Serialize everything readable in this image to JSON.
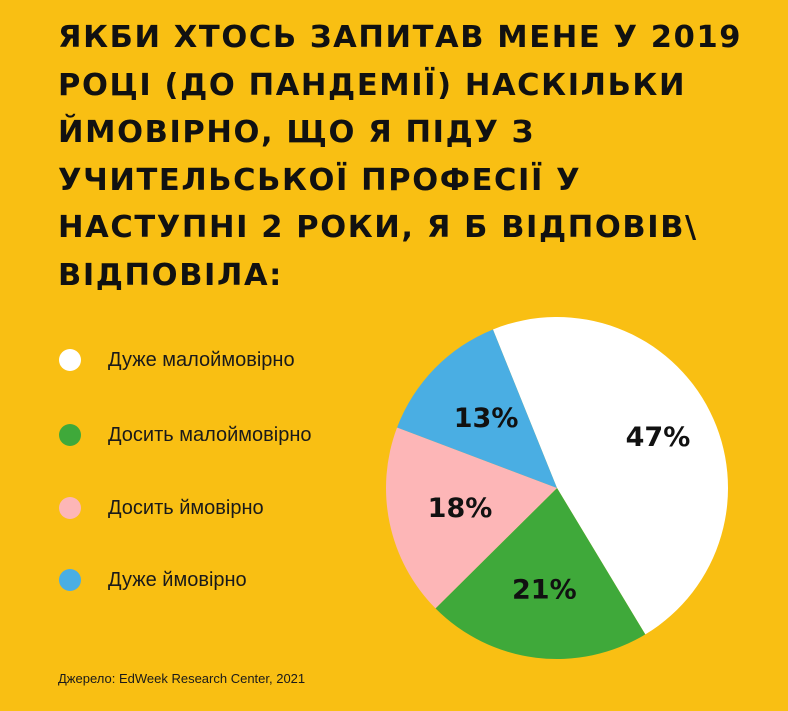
{
  "title_lines": [
    "ЯКБИ ХТОСЬ ЗАПИТАВ МЕНЕ У 2019",
    "РОЦІ (ДО ПАНДЕМІЇ) НАСКІЛЬКИ",
    "ЙМОВІРНО, ЩО Я ПІДУ З",
    "УЧИТЕЛЬСЬКОЇ ПРОФЕСІЇ У",
    "НАСТУПНІ 2 РОКИ, Я Б ВІДПОВІВ\\",
    "ВІДПОВІЛА:"
  ],
  "source": "Джерело: EdWeek Research Center, 2021",
  "colors": {
    "background": "#f9bf13",
    "very_unlikely": "#ffffff",
    "somewhat_unlikely": "#3fa93a",
    "somewhat_likely": "#fdb6b7",
    "very_likely": "#4aaee3"
  },
  "chart_data": {
    "type": "pie",
    "title": "ЯКБИ ХТОСЬ ЗАПИТАВ МЕНЕ У 2019 РОЦІ (ДО ПАНДЕМІЇ) НАСКІЛЬКИ ЙМОВІРНО, ЩО Я ПІДУ З УЧИТЕЛЬСЬКОЇ ПРОФЕСІЇ У НАСТУПНІ 2 РОКИ, Я Б ВІДПОВІВ\\ ВІДПОВІЛА:",
    "legend_position": "left",
    "slices": [
      {
        "label": "Дуже малоймовірно",
        "value": 47,
        "value_label": "47%",
        "color": "#ffffff"
      },
      {
        "label": "Досить малоймовірно",
        "value": 21,
        "value_label": "21%",
        "color": "#3fa93a"
      },
      {
        "label": "Досить ймовірно",
        "value": 18,
        "value_label": "18%",
        "color": "#fdb6b7"
      },
      {
        "label": "Дуже ймовірно",
        "value": 13,
        "value_label": "13%",
        "color": "#4aaee3"
      }
    ]
  }
}
